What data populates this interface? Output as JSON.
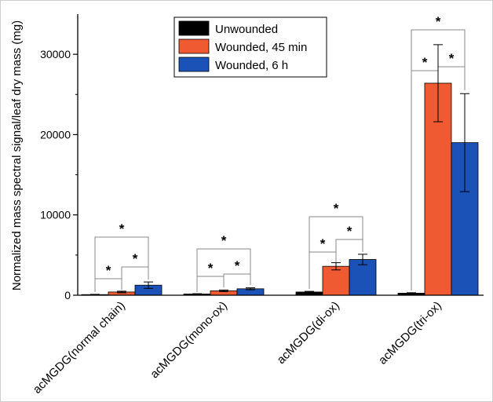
{
  "chart_data": {
    "type": "bar",
    "title": "",
    "xlabel": "",
    "ylabel": "Normalized mass spectral signal/leaf dry mass (mg)",
    "ylim": [
      0,
      35000
    ],
    "yticks": [
      0,
      10000,
      20000,
      30000
    ],
    "ytick_labels": [
      "0",
      "10000",
      "20000",
      "30000"
    ],
    "categories": [
      "acMGDG(normal chain)",
      "acMGDG(mono-ox)",
      "acMGDG(di-ox)",
      "acMGDG(tri-ox)"
    ],
    "series": [
      {
        "name": "Unwounded",
        "color": "#000000",
        "values": [
          80,
          150,
          400,
          250
        ],
        "errors": [
          30,
          40,
          80,
          60
        ]
      },
      {
        "name": "Wounded, 45 min",
        "color": "#f05a32",
        "values": [
          400,
          550,
          3600,
          26400
        ],
        "errors": [
          100,
          100,
          450,
          4800
        ]
      },
      {
        "name": "Wounded, 6 h",
        "color": "#1a52b8",
        "values": [
          1250,
          800,
          4450,
          19000
        ],
        "errors": [
          400,
          120,
          650,
          6100
        ]
      }
    ],
    "significance_marker": "*",
    "legend_position": "top-center",
    "grid": false
  }
}
